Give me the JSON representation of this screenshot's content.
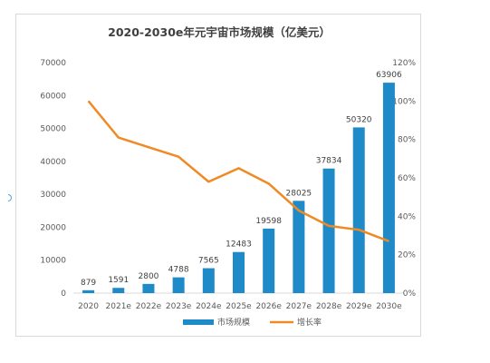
{
  "chart_data": {
    "type": "bar+line",
    "title": "2020-2030e年元宇宙市场规模（亿美元）",
    "categories": [
      "2020",
      "2021e",
      "2022e",
      "2023e",
      "2024e",
      "2025e",
      "2026e",
      "2027e",
      "2028e",
      "2029e",
      "2030e"
    ],
    "series": [
      {
        "name": "市场规模",
        "type": "bar",
        "axis": "left",
        "color": "#1f8ac8",
        "values": [
          879,
          1591,
          2800,
          4788,
          7565,
          12483,
          19598,
          28025,
          37834,
          50320,
          63906
        ],
        "data_labels": [
          "879",
          "1591",
          "2800",
          "4788",
          "7565",
          "12483",
          "19598",
          "28025",
          "37834",
          "50320",
          "63906"
        ]
      },
      {
        "name": "增长率",
        "type": "line",
        "axis": "right",
        "color": "#f08a24",
        "values": [
          1.0,
          0.81,
          0.76,
          0.71,
          0.58,
          0.65,
          0.57,
          0.43,
          0.35,
          0.33,
          0.27
        ]
      }
    ],
    "y_left": {
      "ylim": [
        0,
        70000
      ],
      "ticks": [
        "0",
        "10000",
        "20000",
        "30000",
        "40000",
        "50000",
        "60000",
        "70000"
      ]
    },
    "y_right": {
      "ylim": [
        0,
        1.2
      ],
      "ticks": [
        "0%",
        "20%",
        "40%",
        "60%",
        "80%",
        "100%",
        "120%"
      ]
    },
    "grid": false,
    "legend_position": "bottom"
  }
}
